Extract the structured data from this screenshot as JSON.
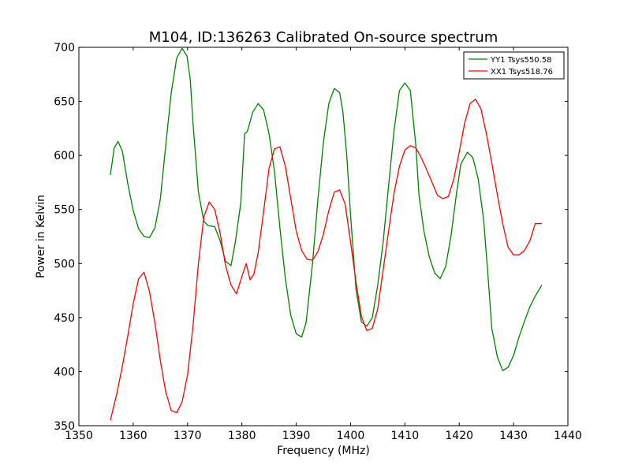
{
  "chart_data": {
    "type": "line",
    "title": "M104, ID:136263 Calibrated On-source spectrum",
    "xlabel": "Frequency (MHz)",
    "ylabel": "Power in Kelvin",
    "xlim": [
      1350,
      1440
    ],
    "ylim": [
      350,
      700
    ],
    "xticks": [
      1350,
      1360,
      1370,
      1380,
      1390,
      1400,
      1410,
      1420,
      1430,
      1440
    ],
    "yticks": [
      350,
      400,
      450,
      500,
      550,
      600,
      650,
      700
    ],
    "grid": false,
    "legend_position": "top-right",
    "series": [
      {
        "name": "YY1 Tsys550.58",
        "color": "#008000",
        "x": [
          1355.8,
          1356.5,
          1357.2,
          1358,
          1359,
          1360,
          1361,
          1362,
          1363,
          1364,
          1365,
          1366,
          1367,
          1368,
          1369,
          1369.9,
          1370.5,
          1371,
          1372,
          1373,
          1373.8,
          1375,
          1376,
          1377,
          1378,
          1378.8,
          1379.8,
          1380.5,
          1381,
          1382,
          1383,
          1384,
          1385,
          1386,
          1387,
          1388,
          1389,
          1390,
          1391,
          1391.8,
          1393,
          1394,
          1395,
          1396,
          1397,
          1398,
          1398.6,
          1399.3,
          1400,
          1401,
          1402,
          1403,
          1404,
          1405,
          1406,
          1407,
          1408,
          1409,
          1410,
          1411,
          1412,
          1412.6,
          1413.5,
          1414.5,
          1415.5,
          1416.5,
          1417.5,
          1418.5,
          1419.5,
          1420.3,
          1421.5,
          1422.5,
          1423.5,
          1424.5,
          1425.2,
          1426,
          1427,
          1428,
          1429,
          1430,
          1431,
          1431.9,
          1433,
          1434,
          1435.2
        ],
        "y": [
          582,
          607,
          613,
          604,
          574,
          549,
          532,
          525,
          524,
          533,
          560,
          610,
          658,
          690,
          699,
          692,
          670,
          630,
          566,
          539,
          535,
          534,
          521,
          502,
          498,
          520,
          556,
          620,
          622,
          640,
          648,
          642,
          620,
          585,
          533,
          486,
          452,
          435,
          432,
          445,
          500,
          560,
          612,
          648,
          662,
          658,
          640,
          600,
          545,
          476,
          446,
          442,
          450,
          480,
          520,
          572,
          623,
          660,
          667,
          660,
          610,
          563,
          530,
          506,
          491,
          486,
          497,
          526,
          565,
          592,
          603,
          598,
          578,
          540,
          495,
          440,
          414,
          401,
          404,
          415,
          432,
          445,
          460,
          470,
          480
        ],
        "note_x_scaled": true
      },
      {
        "name": "XX1 Tsys518.76",
        "color": "#ff0000",
        "x": [
          1355.8,
          1357,
          1358,
          1359,
          1360,
          1361,
          1362,
          1363,
          1364,
          1365,
          1366,
          1367,
          1368,
          1369,
          1370,
          1371,
          1372,
          1373,
          1374,
          1375,
          1376,
          1377,
          1378,
          1379,
          1380,
          1380.8,
          1381.5,
          1382.2,
          1383,
          1384,
          1385,
          1386,
          1387,
          1388,
          1389,
          1390,
          1391,
          1392,
          1393,
          1394,
          1395,
          1396,
          1397,
          1398,
          1399,
          1400,
          1401,
          1402,
          1403,
          1404,
          1405,
          1406,
          1407,
          1408,
          1409,
          1410,
          1411,
          1412,
          1413,
          1414,
          1415,
          1416,
          1417,
          1418,
          1419,
          1420,
          1421,
          1422,
          1423,
          1424,
          1425,
          1426,
          1427,
          1428,
          1429,
          1430,
          1431,
          1432,
          1433,
          1434,
          1435.2
        ],
        "y": [
          355,
          380,
          405,
          433,
          463,
          486,
          492,
          474,
          445,
          410,
          381,
          364,
          362,
          372,
          397,
          442,
          500,
          543,
          557,
          550,
          528,
          498,
          480,
          472,
          488,
          500,
          485,
          490,
          510,
          548,
          588,
          606,
          608,
          590,
          560,
          530,
          512,
          504,
          503,
          511,
          527,
          549,
          566,
          568,
          555,
          520,
          483,
          451,
          438,
          440,
          458,
          494,
          530,
          565,
          590,
          605,
          609,
          607,
          598,
          587,
          575,
          563,
          560,
          562,
          578,
          603,
          630,
          648,
          652,
          643,
          620,
          593,
          564,
          537,
          515,
          508,
          508,
          512,
          521,
          537,
          537
        ],
        "note_x_scaled": true
      }
    ]
  }
}
